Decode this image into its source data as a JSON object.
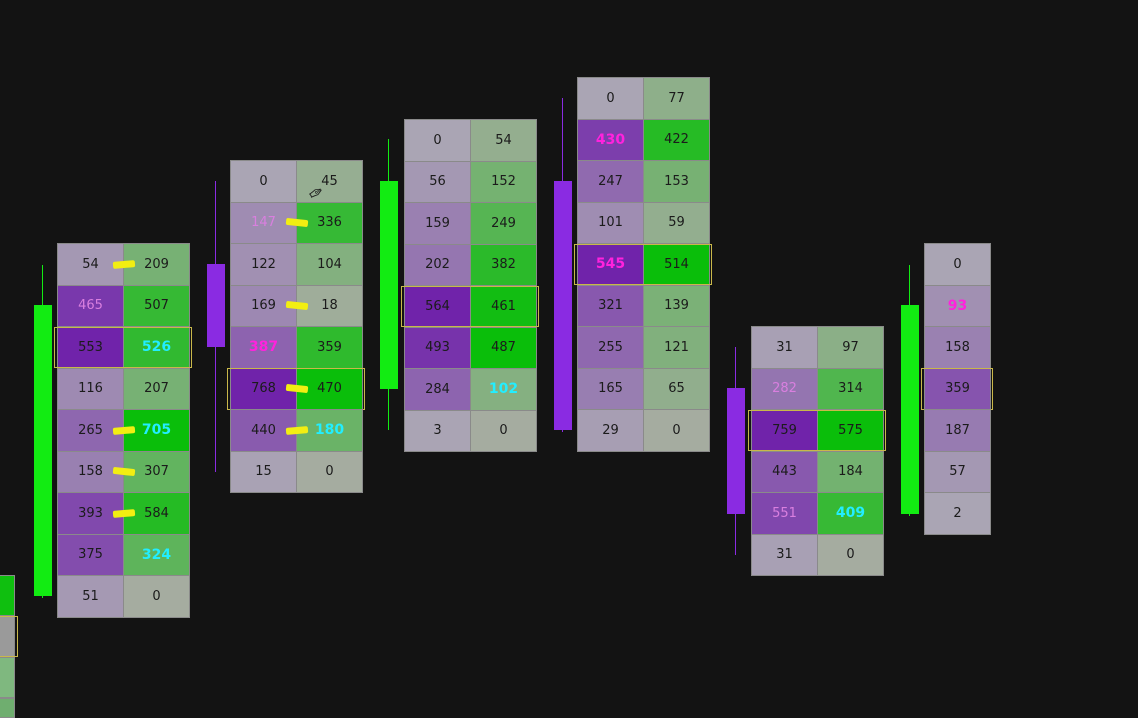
{
  "colors": {
    "background": "#131313",
    "bull": "#12ec12",
    "bear": "#8a2be2",
    "poc_border": "#c9b84a",
    "highlight_magenta": "#ff22dd",
    "highlight_cyan": "#22eeff",
    "faint_pink": "#d97fdf",
    "marker": "#f2ee12"
  },
  "chart_data": {
    "type": "table",
    "description_kind": "footprint",
    "columns_order": [
      "bid",
      "ask"
    ],
    "candles": [
      {
        "direction": "up",
        "rows": [
          {
            "bid": "54",
            "ask": "209",
            "mark": true
          },
          {
            "bid": "465",
            "ask": "507",
            "bid_style": "faint"
          },
          {
            "bid": "553",
            "ask": "526",
            "ask_style": "cyan",
            "poc": true
          },
          {
            "bid": "116",
            "ask": "207"
          },
          {
            "bid": "265",
            "ask": "705",
            "ask_style": "cyan",
            "mark": true
          },
          {
            "bid": "158",
            "ask": "307",
            "mark": true
          },
          {
            "bid": "393",
            "ask": "584",
            "mark": true
          },
          {
            "bid": "375",
            "ask": "324",
            "ask_style": "cyan"
          },
          {
            "bid": "51",
            "ask": "0"
          }
        ]
      },
      {
        "direction": "down",
        "rows": [
          {
            "bid": "0",
            "ask": "45"
          },
          {
            "bid": "147",
            "ask": "336",
            "bid_style": "faint",
            "mark": true
          },
          {
            "bid": "122",
            "ask": "104"
          },
          {
            "bid": "169",
            "ask": "18",
            "mark": true
          },
          {
            "bid": "387",
            "ask": "359",
            "bid_style": "magenta"
          },
          {
            "bid": "768",
            "ask": "470",
            "poc": true,
            "mark": true
          },
          {
            "bid": "440",
            "ask": "180",
            "ask_style": "cyan",
            "mark": true
          },
          {
            "bid": "15",
            "ask": "0"
          }
        ]
      },
      {
        "direction": "up",
        "rows": [
          {
            "bid": "0",
            "ask": "54"
          },
          {
            "bid": "56",
            "ask": "152"
          },
          {
            "bid": "159",
            "ask": "249"
          },
          {
            "bid": "202",
            "ask": "382"
          },
          {
            "bid": "564",
            "ask": "461",
            "poc": true
          },
          {
            "bid": "493",
            "ask": "487"
          },
          {
            "bid": "284",
            "ask": "102",
            "ask_style": "cyan"
          },
          {
            "bid": "3",
            "ask": "0"
          }
        ]
      },
      {
        "direction": "down",
        "rows": [
          {
            "bid": "0",
            "ask": "77"
          },
          {
            "bid": "430",
            "ask": "422",
            "bid_style": "magenta"
          },
          {
            "bid": "247",
            "ask": "153"
          },
          {
            "bid": "101",
            "ask": "59"
          },
          {
            "bid": "545",
            "ask": "514",
            "bid_style": "magenta",
            "poc": true
          },
          {
            "bid": "321",
            "ask": "139"
          },
          {
            "bid": "255",
            "ask": "121"
          },
          {
            "bid": "165",
            "ask": "65"
          },
          {
            "bid": "29",
            "ask": "0"
          }
        ]
      },
      {
        "direction": "down",
        "rows": [
          {
            "bid": "31",
            "ask": "97"
          },
          {
            "bid": "282",
            "ask": "314",
            "bid_style": "faint"
          },
          {
            "bid": "759",
            "ask": "575",
            "poc": true
          },
          {
            "bid": "443",
            "ask": "184"
          },
          {
            "bid": "551",
            "ask": "409",
            "bid_style": "faint",
            "ask_style": "cyan"
          },
          {
            "bid": "31",
            "ask": "0"
          }
        ]
      },
      {
        "direction": "up",
        "rows": [
          {
            "bid": "",
            "ask": "0"
          },
          {
            "bid": "",
            "ask": "93",
            "ask_style": "magenta"
          },
          {
            "bid": "",
            "ask": "158"
          },
          {
            "bid": "",
            "ask": "359",
            "poc": true
          },
          {
            "bid": "",
            "ask": "187"
          },
          {
            "bid": "",
            "ask": "57"
          },
          {
            "bid": "",
            "ask": "2"
          }
        ]
      }
    ]
  }
}
